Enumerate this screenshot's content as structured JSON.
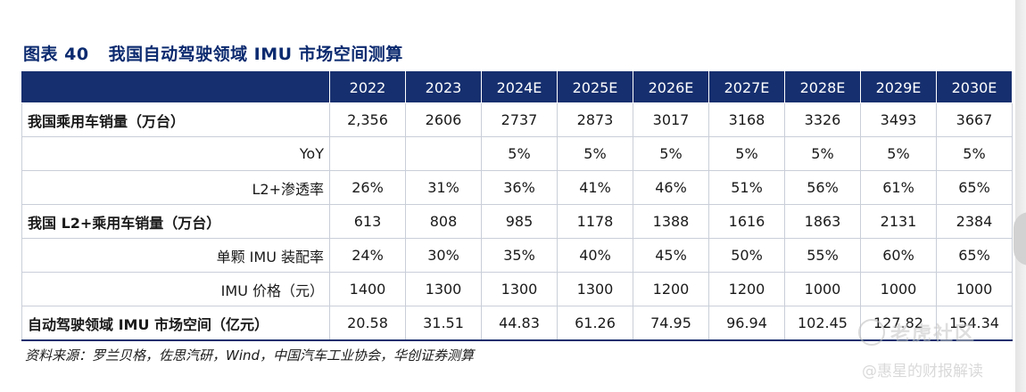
{
  "title": {
    "figure_no": "图表 40",
    "text": "我国自动驾驶领域 IMU 市场空间测算"
  },
  "table": {
    "header": [
      "2022",
      "2023",
      "2024E",
      "2025E",
      "2026E",
      "2027E",
      "2028E",
      "2029E",
      "2030E"
    ],
    "rows": [
      {
        "label": "我国乘用车销量（万台）",
        "values": [
          "2,356",
          "2606",
          "2737",
          "2873",
          "3017",
          "3168",
          "3326",
          "3493",
          "3667"
        ]
      },
      {
        "label": "YoY",
        "values": [
          "",
          "",
          "5%",
          "5%",
          "5%",
          "5%",
          "5%",
          "5%",
          "5%"
        ]
      },
      {
        "label": "L2+渗透率",
        "values": [
          "26%",
          "31%",
          "36%",
          "41%",
          "46%",
          "51%",
          "56%",
          "61%",
          "65%"
        ]
      },
      {
        "label": "我国 L2+乘用车销量（万台）",
        "values": [
          "613",
          "808",
          "985",
          "1178",
          "1388",
          "1616",
          "1863",
          "2131",
          "2384"
        ]
      },
      {
        "label": "单颗 IMU 装配率",
        "values": [
          "24%",
          "30%",
          "35%",
          "40%",
          "45%",
          "50%",
          "55%",
          "60%",
          "65%"
        ]
      },
      {
        "label": "IMU 价格（元）",
        "values": [
          "1400",
          "1300",
          "1300",
          "1300",
          "1200",
          "1200",
          "1000",
          "1000",
          "1000"
        ]
      },
      {
        "label": "自动驾驶领域 IMU 市场空间（亿元）",
        "values": [
          "20.58",
          "31.51",
          "44.83",
          "61.26",
          "74.95",
          "96.94",
          "102.45",
          "127.82",
          "154.34"
        ]
      }
    ]
  },
  "source": "资料来源：罗兰贝格，佐思汽研，Wind，中国汽车工业协会，华创证券测算",
  "watermark": {
    "brand": "老虎社区",
    "author": "@惠星的财报解读"
  },
  "colors": {
    "header_bg": "#162f6e",
    "title": "#0b2a6f",
    "grid": "#c9ced8"
  }
}
